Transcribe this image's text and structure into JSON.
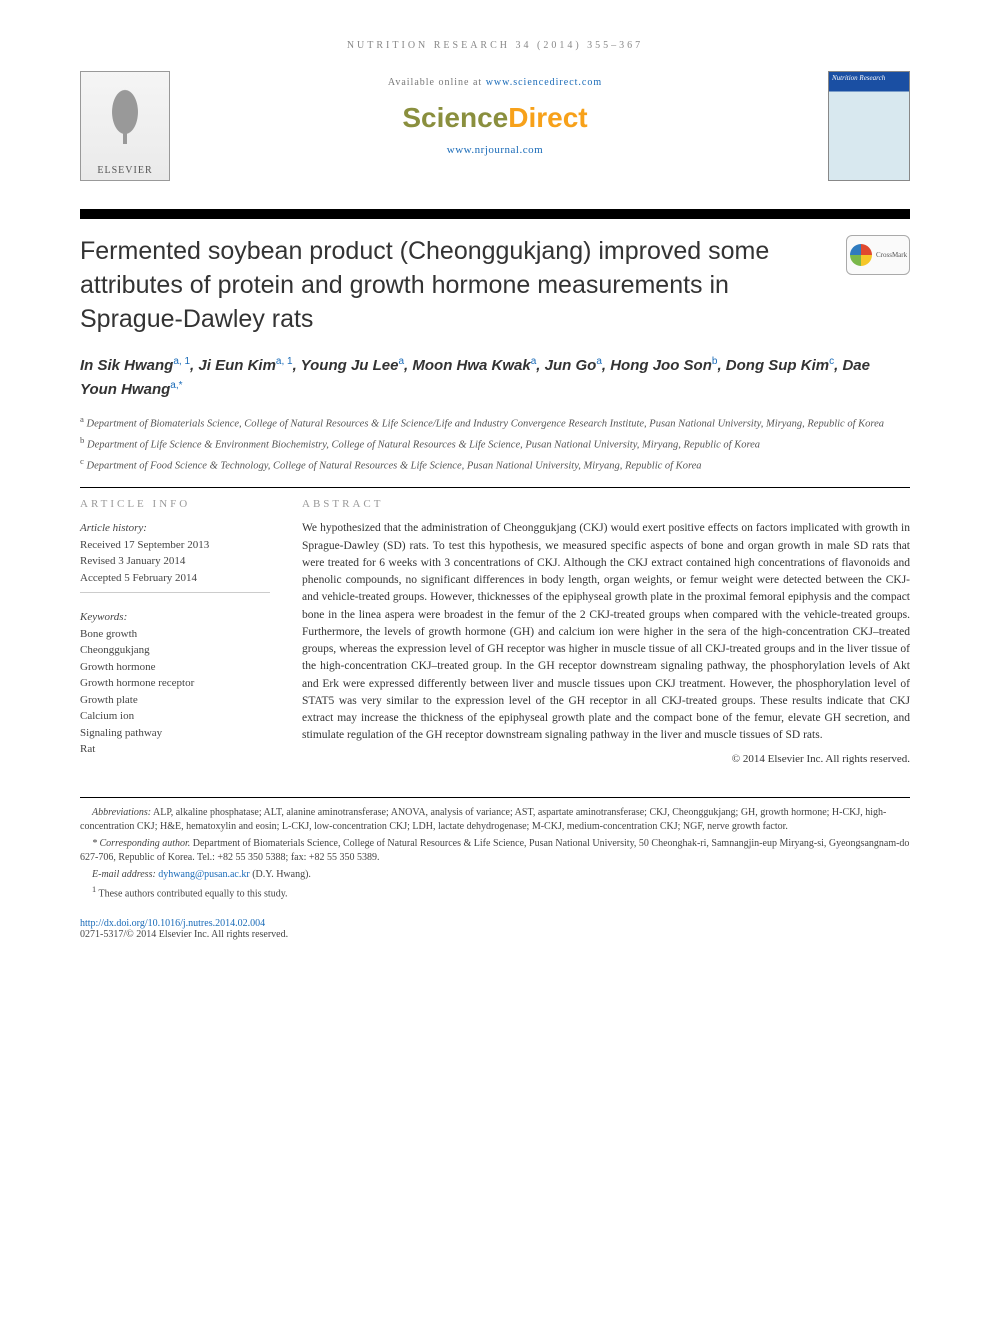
{
  "running_head": "NUTRITION RESEARCH 34 (2014) 355–367",
  "header": {
    "available_prefix": "Available online at ",
    "available_url": "www.sciencedirect.com",
    "sd_logo_left": "Science",
    "sd_logo_right": "Direct",
    "journal_url": "www.nrjournal.com",
    "publisher_name": "ELSEVIER",
    "cover_title": "Nutrition Research"
  },
  "title": "Fermented soybean product (Cheonggukjang) improved some attributes of protein and growth hormone measurements in Sprague-Dawley rats",
  "crossmark_label": "CrossMark",
  "authors_html": "In Sik Hwang",
  "authors": [
    {
      "name": "In Sik Hwang",
      "sup": "a, 1"
    },
    {
      "name": "Ji Eun Kim",
      "sup": "a, 1"
    },
    {
      "name": "Young Ju Lee",
      "sup": "a"
    },
    {
      "name": "Moon Hwa Kwak",
      "sup": "a"
    },
    {
      "name": "Jun Go",
      "sup": "a"
    },
    {
      "name": "Hong Joo Son",
      "sup": "b"
    },
    {
      "name": "Dong Sup Kim",
      "sup": "c"
    },
    {
      "name": "Dae Youn Hwang",
      "sup": "a,*"
    }
  ],
  "affiliations": [
    {
      "key": "a",
      "text": "Department of Biomaterials Science, College of Natural Resources & Life Science/Life and Industry Convergence Research Institute, Pusan National University, Miryang, Republic of Korea"
    },
    {
      "key": "b",
      "text": "Department of Life Science & Environment Biochemistry, College of Natural Resources & Life Science, Pusan National University, Miryang, Republic of Korea"
    },
    {
      "key": "c",
      "text": "Department of Food Science & Technology, College of Natural Resources & Life Science, Pusan National University, Miryang, Republic of Korea"
    }
  ],
  "article_info": {
    "head": "ARTICLE INFO",
    "history_label": "Article history:",
    "history": [
      "Received 17 September 2013",
      "Revised 3 January 2014",
      "Accepted 5 February 2014"
    ],
    "keywords_label": "Keywords:",
    "keywords": [
      "Bone growth",
      "Cheonggukjang",
      "Growth hormone",
      "Growth hormone receptor",
      "Growth plate",
      "Calcium ion",
      "Signaling pathway",
      "Rat"
    ]
  },
  "abstract": {
    "head": "ABSTRACT",
    "text": "We hypothesized that the administration of Cheonggukjang (CKJ) would exert positive effects on factors implicated with growth in Sprague-Dawley (SD) rats. To test this hypothesis, we measured specific aspects of bone and organ growth in male SD rats that were treated for 6 weeks with 3 concentrations of CKJ. Although the CKJ extract contained high concentrations of flavonoids and phenolic compounds, no significant differences in body length, organ weights, or femur weight were detected between the CKJ- and vehicle-treated groups. However, thicknesses of the epiphyseal growth plate in the proximal femoral epiphysis and the compact bone in the linea aspera were broadest in the femur of the 2 CKJ-treated groups when compared with the vehicle-treated groups. Furthermore, the levels of growth hormone (GH) and calcium ion were higher in the sera of the high-concentration CKJ–treated groups, whereas the expression level of GH receptor was higher in muscle tissue of all CKJ-treated groups and in the liver tissue of the high-concentration CKJ–treated group. In the GH receptor downstream signaling pathway, the phosphorylation levels of Akt and Erk were expressed differently between liver and muscle tissues upon CKJ treatment. However, the phosphorylation level of STAT5 was very similar to the expression level of the GH receptor in all CKJ-treated groups. These results indicate that CKJ extract may increase the thickness of the epiphyseal growth plate and the compact bone of the femur, elevate GH secretion, and stimulate regulation of the GH receptor downstream signaling pathway in the liver and muscle tissues of SD rats.",
    "copyright": "© 2014 Elsevier Inc. All rights reserved."
  },
  "footnotes": {
    "abbr_label": "Abbreviations:",
    "abbr_text": " ALP, alkaline phosphatase; ALT, alanine aminotransferase; ANOVA, analysis of variance; AST, aspartate aminotransferase; CKJ, Cheonggukjang; GH, growth hormone; H-CKJ, high-concentration CKJ; H&E, hematoxylin and eosin; L-CKJ, low-concentration CKJ; LDH, lactate dehydrogenase; M-CKJ, medium-concentration CKJ; NGF, nerve growth factor.",
    "corr_label": "* Corresponding author.",
    "corr_text": " Department of Biomaterials Science, College of Natural Resources & Life Science, Pusan National University, 50 Cheonghak-ri, Samnangjin-eup Miryang-si, Gyeongsangnam-do 627-706, Republic of Korea. Tel.: +82 55 350 5388; fax: +82 55 350 5389.",
    "email_label": "E-mail address: ",
    "email": "dyhwang@pusan.ac.kr",
    "email_suffix": " (D.Y. Hwang).",
    "equal": "These authors contributed equally to this study.",
    "equal_sup": "1"
  },
  "footer": {
    "doi": "http://dx.doi.org/10.1016/j.nutres.2014.02.004",
    "issn_line": "0271-5317/© 2014 Elsevier Inc. All rights reserved."
  },
  "colors": {
    "link": "#1a6bb8",
    "sd_green": "#8a8f3e",
    "sd_orange": "#f7a11a"
  }
}
